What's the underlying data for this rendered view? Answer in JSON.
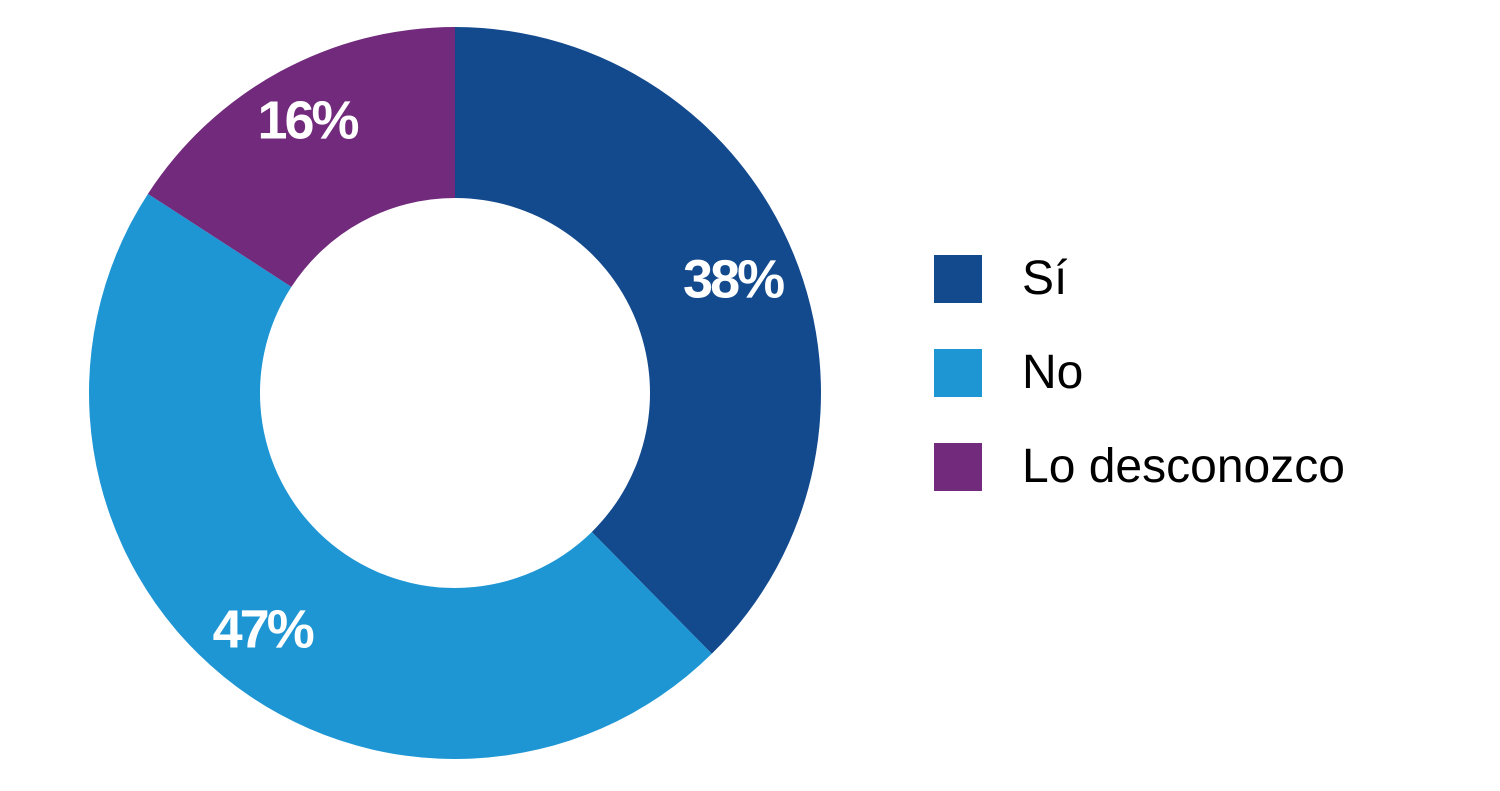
{
  "chart_data": {
    "type": "pie",
    "variant": "donut",
    "title": "",
    "categories": [
      "Sí",
      "No",
      "Lo desconozco"
    ],
    "values": [
      38,
      47,
      16
    ],
    "labels": [
      "38%",
      "47%",
      "16%"
    ],
    "colors": [
      "#134a8e",
      "#1e96d4",
      "#722a7c"
    ],
    "legend_position": "right"
  }
}
